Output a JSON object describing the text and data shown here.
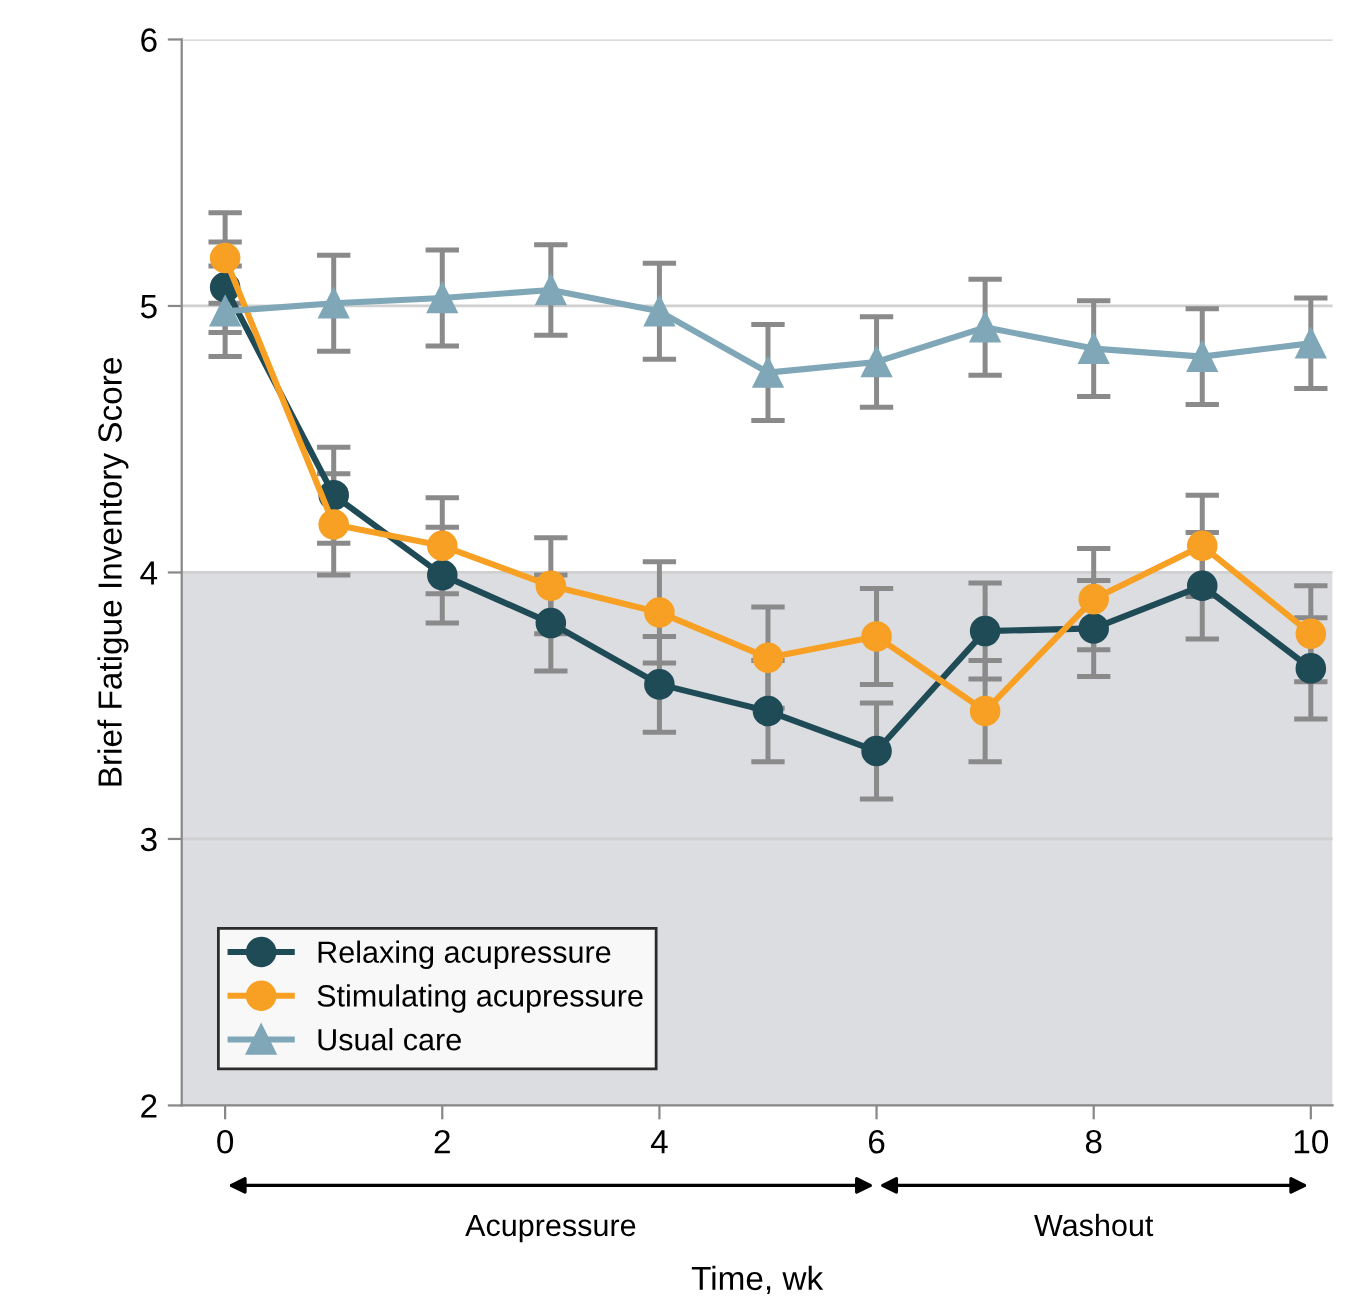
{
  "chart_data": {
    "type": "line",
    "xlabel": "Time, wk",
    "ylabel": "Brief Fatigue Inventory Score",
    "x": [
      0,
      1,
      2,
      3,
      4,
      5,
      6,
      7,
      8,
      9,
      10
    ],
    "xlim": [
      -0.4,
      10.2
    ],
    "xticks": [
      0,
      2,
      4,
      6,
      8,
      10
    ],
    "ylim": [
      2,
      6
    ],
    "yticks": [
      2,
      3,
      4,
      5,
      6
    ],
    "grid": "y",
    "legend": "bottom left",
    "bands": [
      {
        "axis": "y",
        "from": 2,
        "to": 4,
        "color": "#dcdde0"
      }
    ],
    "annotations": [
      "Acupressure",
      "Washout"
    ],
    "series": [
      {
        "name": "Relaxing acupressure",
        "color": "#1f4b57",
        "marker": "circle",
        "values": [
          5.07,
          4.29,
          3.99,
          3.81,
          3.58,
          3.48,
          3.33,
          3.78,
          3.79,
          3.95,
          3.64
        ],
        "errors": [
          0.17,
          0.18,
          0.18,
          0.18,
          0.18,
          0.19,
          0.18,
          0.18,
          0.18,
          0.2,
          0.19
        ]
      },
      {
        "name": "Stimulating acupressure",
        "color": "#f7a024",
        "marker": "circle",
        "values": [
          5.18,
          4.18,
          4.1,
          3.95,
          3.85,
          3.68,
          3.76,
          3.48,
          3.9,
          4.1,
          3.77
        ],
        "errors": [
          0.17,
          0.19,
          0.18,
          0.18,
          0.19,
          0.19,
          0.18,
          0.19,
          0.19,
          0.19,
          0.18
        ]
      },
      {
        "name": "Usual care",
        "color": "#7fa7b7",
        "marker": "triangle",
        "values": [
          4.98,
          5.01,
          5.03,
          5.06,
          4.98,
          4.75,
          4.79,
          4.92,
          4.84,
          4.81,
          4.86
        ],
        "errors": [
          0.17,
          0.18,
          0.18,
          0.17,
          0.18,
          0.18,
          0.17,
          0.18,
          0.18,
          0.18,
          0.17
        ]
      }
    ]
  }
}
